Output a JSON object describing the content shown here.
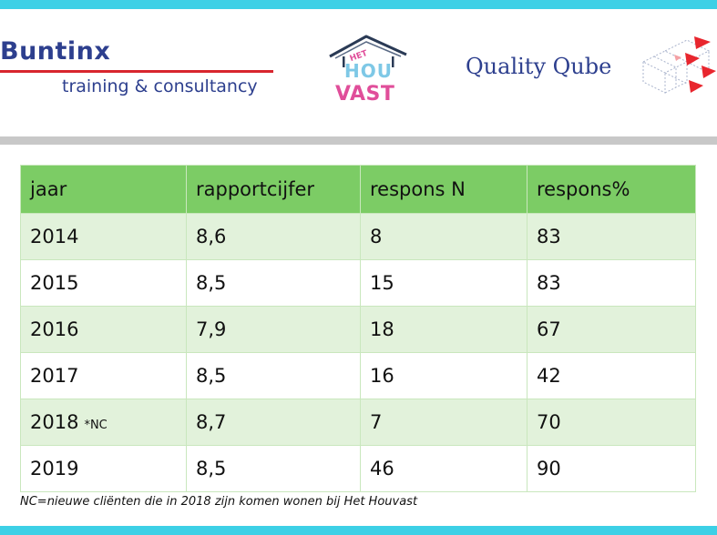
{
  "logos": {
    "buntinx": {
      "name": "Buntinx",
      "tagline": "training & consultancy"
    },
    "houvast": {
      "het": "HET",
      "hou": "HOU",
      "vast": "VAST"
    },
    "quality_qube": {
      "name": "Quality Qube"
    }
  },
  "colors": {
    "top_band": "#3dd0e6",
    "header_green": "#7ccc65",
    "row_light_green": "#e2f2db",
    "brand_blue": "#2d3f8e",
    "brand_red": "#d8262e"
  },
  "table": {
    "headers": [
      "jaar",
      "rapportcijfer",
      "respons N",
      "respons%"
    ],
    "rows": [
      {
        "jaar": "2014",
        "mark": "",
        "rapportcijfer": "8,6",
        "respons_n": "8",
        "respons_pct": "83"
      },
      {
        "jaar": "2015",
        "mark": "",
        "rapportcijfer": "8,5",
        "respons_n": "15",
        "respons_pct": "83"
      },
      {
        "jaar": "2016",
        "mark": "",
        "rapportcijfer": "7,9",
        "respons_n": "18",
        "respons_pct": "67"
      },
      {
        "jaar": "2017",
        "mark": "",
        "rapportcijfer": "8,5",
        "respons_n": "16",
        "respons_pct": "42"
      },
      {
        "jaar": "2018",
        "mark": "*NC",
        "rapportcijfer": "8,7",
        "respons_n": "7",
        "respons_pct": "70"
      },
      {
        "jaar": "2019",
        "mark": "",
        "rapportcijfer": "8,5",
        "respons_n": "46",
        "respons_pct": "90"
      }
    ]
  },
  "footnote": "NC=nieuwe cliënten die in 2018 zijn komen wonen bij Het Houvast"
}
